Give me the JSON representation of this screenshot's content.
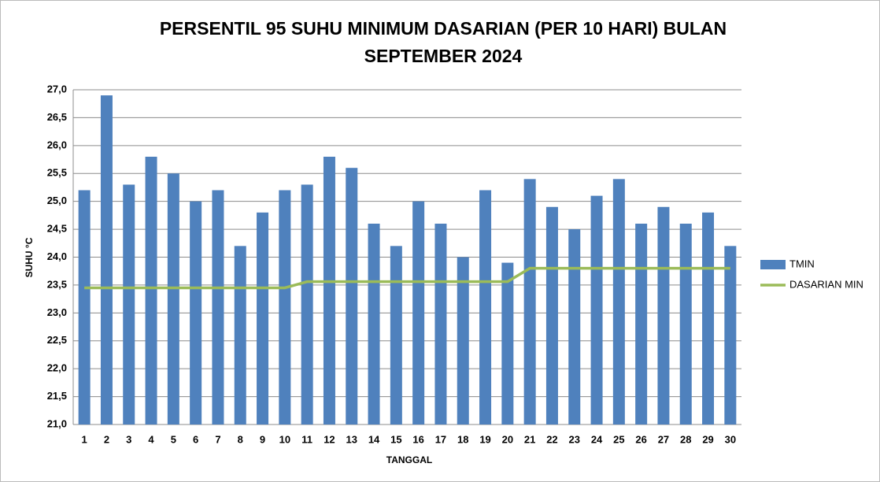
{
  "chart_data": {
    "type": "bar",
    "title": [
      "PERSENTIL 95 SUHU MINIMUM  DASARIAN (PER 10 HARI) BULAN",
      "SEPTEMBER 2024"
    ],
    "x_label": "TANGGAL",
    "y_label": "SUHU °C",
    "categories": [
      "1",
      "2",
      "3",
      "4",
      "5",
      "6",
      "7",
      "8",
      "9",
      "10",
      "11",
      "12",
      "13",
      "14",
      "15",
      "16",
      "17",
      "18",
      "19",
      "20",
      "21",
      "22",
      "23",
      "24",
      "25",
      "26",
      "27",
      "28",
      "29",
      "30"
    ],
    "series": [
      {
        "name": "TMIN",
        "type": "bar",
        "color": "#4f81bd",
        "values": [
          25.2,
          26.9,
          25.3,
          25.8,
          25.5,
          25.0,
          25.2,
          24.2,
          24.8,
          25.2,
          25.3,
          25.8,
          25.6,
          24.6,
          24.2,
          25.0,
          24.6,
          24.0,
          25.2,
          23.9,
          25.4,
          24.9,
          24.5,
          25.1,
          25.4,
          24.6,
          24.9,
          24.6,
          24.8,
          24.2
        ]
      },
      {
        "name": "DASARIAN MIN",
        "type": "line",
        "color": "#9bbb59",
        "values": [
          23.45,
          23.45,
          23.45,
          23.45,
          23.45,
          23.45,
          23.45,
          23.45,
          23.45,
          23.45,
          23.56,
          23.56,
          23.56,
          23.56,
          23.56,
          23.56,
          23.56,
          23.56,
          23.56,
          23.56,
          23.8,
          23.8,
          23.8,
          23.8,
          23.8,
          23.8,
          23.8,
          23.8,
          23.8,
          23.8
        ]
      }
    ],
    "ylim": [
      21,
      27
    ],
    "yticks": [
      {
        "value": 21,
        "label": "21,0"
      },
      {
        "value": 21.5,
        "label": "21,5"
      },
      {
        "value": 22,
        "label": "22,0"
      },
      {
        "value": 22.5,
        "label": "22,5"
      },
      {
        "value": 23,
        "label": "23,0"
      },
      {
        "value": 23.5,
        "label": "23,5"
      },
      {
        "value": 24,
        "label": "24,0"
      },
      {
        "value": 24.5,
        "label": "24,5"
      },
      {
        "value": 25,
        "label": "25,0"
      },
      {
        "value": 25.5,
        "label": "25,5"
      },
      {
        "value": 26,
        "label": "26,0"
      },
      {
        "value": 26.5,
        "label": "26,5"
      },
      {
        "value": 27,
        "label": "27,0"
      }
    ],
    "grid": true,
    "legend": "right"
  }
}
